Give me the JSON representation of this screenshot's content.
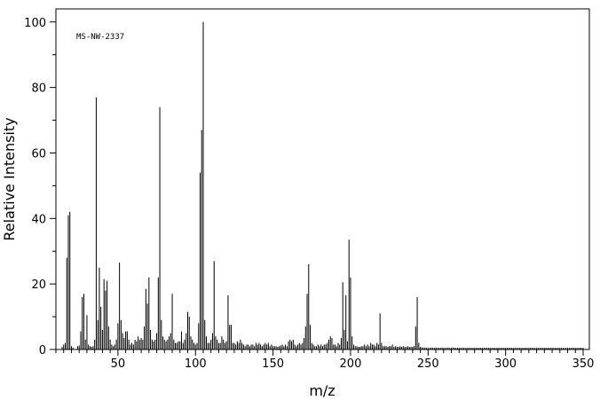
{
  "chart_data": {
    "type": "bar",
    "title": "",
    "annotation": "MS-NW-2337",
    "xlabel": "m/z",
    "ylabel": "Relative Intensity",
    "xlim": [
      10,
      354
    ],
    "ylim": [
      0,
      104
    ],
    "x_ticks": [
      50,
      100,
      150,
      200,
      250,
      300,
      350
    ],
    "y_ticks": [
      0,
      20,
      40,
      60,
      80,
      100
    ],
    "grid": false,
    "legend": "none",
    "bar_color": "#000000",
    "peaks": [
      [
        14,
        0.8
      ],
      [
        15,
        1.5
      ],
      [
        16,
        2.0
      ],
      [
        17,
        28.0
      ],
      [
        18,
        41.0
      ],
      [
        19,
        42.0
      ],
      [
        20,
        1.0
      ],
      [
        21,
        0.6
      ],
      [
        24,
        1.0
      ],
      [
        25,
        1.2
      ],
      [
        26,
        5.5
      ],
      [
        27,
        16.0
      ],
      [
        28,
        17.0
      ],
      [
        29,
        3.0
      ],
      [
        30,
        10.5
      ],
      [
        31,
        1.5
      ],
      [
        32,
        1.0
      ],
      [
        33,
        0.8
      ],
      [
        34,
        1.0
      ],
      [
        35,
        3.0
      ],
      [
        36,
        77.0
      ],
      [
        37,
        9.0
      ],
      [
        38,
        25.0
      ],
      [
        39,
        13.0
      ],
      [
        40,
        6.0
      ],
      [
        41,
        21.5
      ],
      [
        42,
        18.0
      ],
      [
        43,
        21.0
      ],
      [
        44,
        7.0
      ],
      [
        45,
        3.0
      ],
      [
        46,
        1.5
      ],
      [
        47,
        1.0
      ],
      [
        48,
        1.5
      ],
      [
        49,
        3.0
      ],
      [
        50,
        8.0
      ],
      [
        51,
        26.5
      ],
      [
        52,
        9.0
      ],
      [
        53,
        5.0
      ],
      [
        54,
        3.5
      ],
      [
        55,
        5.5
      ],
      [
        56,
        5.5
      ],
      [
        57,
        3.0
      ],
      [
        58,
        1.5
      ],
      [
        59,
        2.0
      ],
      [
        60,
        1.5
      ],
      [
        61,
        3.0
      ],
      [
        62,
        2.5
      ],
      [
        63,
        4.0
      ],
      [
        64,
        3.0
      ],
      [
        65,
        3.5
      ],
      [
        66,
        3.0
      ],
      [
        67,
        7.0
      ],
      [
        68,
        18.5
      ],
      [
        69,
        14.0
      ],
      [
        70,
        22.0
      ],
      [
        71,
        6.0
      ],
      [
        72,
        3.0
      ],
      [
        73,
        2.5
      ],
      [
        74,
        3.0
      ],
      [
        75,
        5.0
      ],
      [
        76,
        22.0
      ],
      [
        77,
        74.0
      ],
      [
        78,
        9.0
      ],
      [
        79,
        4.0
      ],
      [
        80,
        3.0
      ],
      [
        81,
        2.5
      ],
      [
        82,
        3.0
      ],
      [
        83,
        4.0
      ],
      [
        84,
        5.0
      ],
      [
        85,
        17.0
      ],
      [
        86,
        3.0
      ],
      [
        87,
        2.0
      ],
      [
        88,
        2.0
      ],
      [
        89,
        2.5
      ],
      [
        90,
        2.5
      ],
      [
        91,
        5.5
      ],
      [
        92,
        2.0
      ],
      [
        93,
        3.0
      ],
      [
        94,
        5.0
      ],
      [
        95,
        11.5
      ],
      [
        96,
        10.0
      ],
      [
        97,
        4.0
      ],
      [
        98,
        3.0
      ],
      [
        99,
        2.0
      ],
      [
        100,
        1.5
      ],
      [
        101,
        2.0
      ],
      [
        102,
        8.0
      ],
      [
        103,
        54.0
      ],
      [
        104,
        67.0
      ],
      [
        105,
        100.0
      ],
      [
        106,
        9.0
      ],
      [
        107,
        4.0
      ],
      [
        108,
        2.0
      ],
      [
        109,
        2.0
      ],
      [
        110,
        3.0
      ],
      [
        111,
        5.0
      ],
      [
        112,
        27.0
      ],
      [
        113,
        4.0
      ],
      [
        114,
        3.0
      ],
      [
        115,
        2.0
      ],
      [
        116,
        2.0
      ],
      [
        117,
        4.0
      ],
      [
        118,
        3.0
      ],
      [
        119,
        2.0
      ],
      [
        120,
        2.5
      ],
      [
        121,
        16.5
      ],
      [
        122,
        7.5
      ],
      [
        123,
        7.5
      ],
      [
        124,
        2.0
      ],
      [
        125,
        2.0
      ],
      [
        126,
        1.5
      ],
      [
        127,
        2.5
      ],
      [
        128,
        2.0
      ],
      [
        129,
        3.0
      ],
      [
        130,
        2.0
      ],
      [
        131,
        1.5
      ],
      [
        132,
        1.0
      ],
      [
        133,
        1.5
      ],
      [
        134,
        1.5
      ],
      [
        135,
        1.0
      ],
      [
        136,
        1.5
      ],
      [
        137,
        1.5
      ],
      [
        138,
        1.0
      ],
      [
        139,
        2.0
      ],
      [
        140,
        1.5
      ],
      [
        141,
        2.0
      ],
      [
        142,
        1.5
      ],
      [
        143,
        1.0
      ],
      [
        144,
        1.5
      ],
      [
        145,
        2.0
      ],
      [
        146,
        1.5
      ],
      [
        147,
        2.0
      ],
      [
        148,
        1.0
      ],
      [
        149,
        1.5
      ],
      [
        150,
        1.0
      ],
      [
        151,
        1.0
      ],
      [
        152,
        1.0
      ],
      [
        153,
        0.8
      ],
      [
        154,
        1.0
      ],
      [
        155,
        1.2
      ],
      [
        156,
        1.5
      ],
      [
        157,
        1.0
      ],
      [
        158,
        1.5
      ],
      [
        159,
        1.0
      ],
      [
        160,
        2.5
      ],
      [
        161,
        3.0
      ],
      [
        162,
        2.5
      ],
      [
        163,
        3.0
      ],
      [
        164,
        1.5
      ],
      [
        165,
        1.0
      ],
      [
        166,
        1.5
      ],
      [
        167,
        2.0
      ],
      [
        168,
        1.5
      ],
      [
        169,
        2.0
      ],
      [
        170,
        3.5
      ],
      [
        171,
        7.0
      ],
      [
        172,
        17.0
      ],
      [
        173,
        26.0
      ],
      [
        174,
        7.5
      ],
      [
        175,
        2.0
      ],
      [
        176,
        1.5
      ],
      [
        177,
        1.0
      ],
      [
        178,
        1.0
      ],
      [
        179,
        1.5
      ],
      [
        180,
        1.0
      ],
      [
        181,
        1.5
      ],
      [
        182,
        1.0
      ],
      [
        183,
        1.5
      ],
      [
        184,
        1.5
      ],
      [
        185,
        2.0
      ],
      [
        186,
        3.0
      ],
      [
        187,
        4.0
      ],
      [
        188,
        3.5
      ],
      [
        189,
        1.5
      ],
      [
        190,
        1.5
      ],
      [
        191,
        1.0
      ],
      [
        192,
        2.0
      ],
      [
        193,
        1.5
      ],
      [
        194,
        3.5
      ],
      [
        195,
        20.5
      ],
      [
        196,
        6.0
      ],
      [
        197,
        16.5
      ],
      [
        198,
        2.5
      ],
      [
        199,
        33.5
      ],
      [
        200,
        22.0
      ],
      [
        201,
        4.0
      ],
      [
        202,
        1.5
      ],
      [
        203,
        1.0
      ],
      [
        204,
        1.0
      ],
      [
        205,
        0.8
      ],
      [
        206,
        0.8
      ],
      [
        207,
        1.0
      ],
      [
        208,
        1.0
      ],
      [
        209,
        1.5
      ],
      [
        210,
        1.0
      ],
      [
        211,
        1.5
      ],
      [
        212,
        1.0
      ],
      [
        213,
        2.0
      ],
      [
        214,
        1.5
      ],
      [
        215,
        1.5
      ],
      [
        216,
        1.0
      ],
      [
        217,
        2.0
      ],
      [
        218,
        1.5
      ],
      [
        219,
        11.0
      ],
      [
        220,
        2.0
      ],
      [
        221,
        1.0
      ],
      [
        222,
        1.0
      ],
      [
        223,
        1.0
      ],
      [
        224,
        0.8
      ],
      [
        225,
        1.0
      ],
      [
        226,
        1.0
      ],
      [
        227,
        1.5
      ],
      [
        228,
        0.8
      ],
      [
        229,
        1.0
      ],
      [
        230,
        0.8
      ],
      [
        231,
        0.8
      ],
      [
        232,
        1.0
      ],
      [
        233,
        0.8
      ],
      [
        234,
        1.0
      ],
      [
        235,
        0.8
      ],
      [
        236,
        0.8
      ],
      [
        237,
        1.0
      ],
      [
        238,
        0.8
      ],
      [
        239,
        0.8
      ],
      [
        240,
        0.8
      ],
      [
        241,
        1.0
      ],
      [
        242,
        7.0
      ],
      [
        243,
        16.0
      ],
      [
        244,
        2.0
      ],
      [
        245,
        0.8
      ],
      [
        246,
        0.6
      ],
      [
        247,
        0.6
      ],
      [
        248,
        0.6
      ],
      [
        249,
        0.5
      ],
      [
        250,
        0.5
      ],
      [
        251,
        0.5
      ],
      [
        252,
        0.6
      ],
      [
        253,
        0.5
      ],
      [
        254,
        0.5
      ],
      [
        255,
        0.6
      ],
      [
        256,
        0.5
      ],
      [
        257,
        0.5
      ],
      [
        258,
        0.5
      ],
      [
        259,
        0.6
      ],
      [
        260,
        0.5
      ],
      [
        261,
        0.5
      ],
      [
        262,
        0.5
      ],
      [
        263,
        0.6
      ],
      [
        264,
        0.5
      ],
      [
        265,
        0.5
      ],
      [
        266,
        0.6
      ],
      [
        267,
        0.5
      ],
      [
        268,
        0.5
      ],
      [
        269,
        0.5
      ],
      [
        270,
        0.5
      ],
      [
        271,
        0.5
      ],
      [
        272,
        0.5
      ],
      [
        273,
        0.5
      ],
      [
        274,
        0.5
      ],
      [
        275,
        0.5
      ],
      [
        276,
        0.5
      ],
      [
        277,
        0.5
      ],
      [
        278,
        0.5
      ],
      [
        279,
        0.5
      ],
      [
        280,
        0.5
      ],
      [
        281,
        0.5
      ],
      [
        282,
        0.5
      ],
      [
        283,
        0.5
      ],
      [
        284,
        0.5
      ],
      [
        285,
        0.5
      ],
      [
        286,
        0.5
      ],
      [
        287,
        0.5
      ],
      [
        288,
        0.5
      ],
      [
        289,
        0.5
      ],
      [
        290,
        0.5
      ],
      [
        291,
        0.5
      ],
      [
        292,
        0.5
      ],
      [
        293,
        0.5
      ],
      [
        294,
        0.5
      ],
      [
        295,
        0.5
      ],
      [
        296,
        0.5
      ],
      [
        297,
        0.5
      ],
      [
        298,
        0.5
      ],
      [
        299,
        0.5
      ],
      [
        300,
        0.5
      ],
      [
        301,
        0.5
      ],
      [
        302,
        0.5
      ],
      [
        303,
        0.5
      ],
      [
        304,
        0.5
      ],
      [
        305,
        0.5
      ],
      [
        306,
        0.5
      ],
      [
        307,
        0.5
      ],
      [
        308,
        0.5
      ],
      [
        309,
        0.5
      ],
      [
        310,
        0.5
      ],
      [
        311,
        0.5
      ],
      [
        312,
        0.5
      ],
      [
        313,
        0.5
      ],
      [
        314,
        0.5
      ],
      [
        315,
        0.5
      ],
      [
        316,
        0.5
      ],
      [
        317,
        0.5
      ],
      [
        318,
        0.5
      ],
      [
        319,
        0.5
      ],
      [
        320,
        0.5
      ],
      [
        321,
        0.5
      ],
      [
        322,
        0.5
      ],
      [
        323,
        0.5
      ],
      [
        324,
        0.5
      ],
      [
        325,
        0.5
      ],
      [
        326,
        0.5
      ],
      [
        327,
        0.5
      ],
      [
        328,
        0.5
      ],
      [
        329,
        0.5
      ],
      [
        330,
        0.5
      ],
      [
        331,
        0.5
      ],
      [
        332,
        0.5
      ],
      [
        333,
        0.5
      ],
      [
        334,
        0.5
      ],
      [
        335,
        0.5
      ],
      [
        336,
        0.5
      ],
      [
        337,
        0.5
      ],
      [
        338,
        0.5
      ],
      [
        339,
        0.5
      ],
      [
        340,
        0.5
      ],
      [
        341,
        0.5
      ],
      [
        342,
        0.5
      ],
      [
        343,
        0.5
      ],
      [
        344,
        0.5
      ],
      [
        345,
        0.5
      ],
      [
        346,
        0.5
      ],
      [
        347,
        0.5
      ],
      [
        348,
        0.5
      ],
      [
        349,
        0.5
      ],
      [
        350,
        0.5
      ]
    ]
  }
}
